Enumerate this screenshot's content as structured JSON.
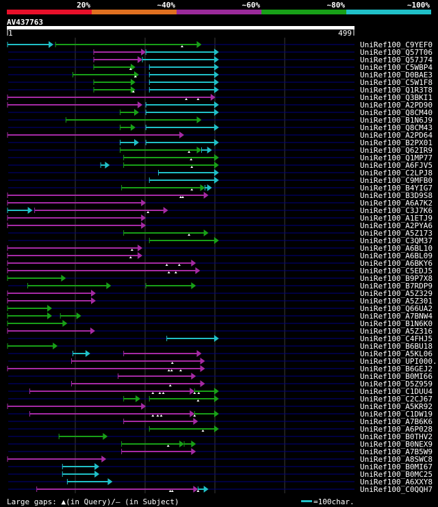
{
  "chart_data": {
    "type": "alignment-overview",
    "query_id": "AV437763",
    "ruler": {
      "start": "1",
      "end": "499"
    },
    "identity_scale": {
      "labels": [
        "20%",
        "~40%",
        "~60%",
        "~80%",
        "~100%"
      ],
      "colors": [
        "#e8102a",
        "#e07020",
        "#9a2a9a",
        "#18a018",
        "#20c0c8"
      ]
    },
    "colors": {
      "cyan": "#20c0c8",
      "green": "#18a018",
      "purple": "#a52aa5",
      "line": "#000080",
      "grid": "#3a3a3a"
    },
    "legend": {
      "gaps_text": "Large gaps: ▲(in Query)/– (in Subject)",
      "scale_text": "=100char."
    },
    "hits": [
      {
        "name": "UniRef100_C9YEF0",
        "segments": [
          {
            "s": 1,
            "e": 67,
            "c": "cyan"
          },
          {
            "s": 70,
            "e": 280,
            "c": "green"
          }
        ],
        "gaps": [
          252
        ]
      },
      {
        "name": "UniRef100_Q57T06",
        "segments": [
          {
            "s": 125,
            "e": 200,
            "c": "purple"
          },
          {
            "s": 200,
            "e": 305,
            "c": "cyan"
          }
        ],
        "gaps": []
      },
      {
        "name": "UniRef100_Q57J74",
        "segments": [
          {
            "s": 125,
            "e": 195,
            "c": "purple"
          },
          {
            "s": 195,
            "e": 305,
            "c": "cyan"
          }
        ],
        "gaps": []
      },
      {
        "name": "UniRef100_C5WBP4",
        "segments": [
          {
            "s": 125,
            "e": 185,
            "c": "green"
          },
          {
            "s": 205,
            "e": 305,
            "c": "cyan"
          }
        ],
        "gaps": [
          178
        ]
      },
      {
        "name": "UniRef100_D0BAE3",
        "segments": [
          {
            "s": 95,
            "e": 190,
            "c": "green"
          },
          {
            "s": 205,
            "e": 305,
            "c": "cyan"
          }
        ],
        "gaps": [
          185
        ]
      },
      {
        "name": "UniRef100_C5W1F8",
        "segments": [
          {
            "s": 125,
            "e": 185,
            "c": "green"
          },
          {
            "s": 205,
            "e": 305,
            "c": "cyan"
          }
        ],
        "gaps": []
      },
      {
        "name": "UniRef100_Q1R3T8",
        "segments": [
          {
            "s": 125,
            "e": 185,
            "c": "green"
          },
          {
            "s": 205,
            "e": 305,
            "c": "cyan"
          }
        ],
        "gaps": [
          182
        ]
      },
      {
        "name": "UniRef100_Q3BKI1",
        "segments": [
          {
            "s": 1,
            "e": 300,
            "c": "purple"
          }
        ],
        "gaps": [
          258,
          275
        ]
      },
      {
        "name": "UniRef100_A2PD90",
        "segments": [
          {
            "s": 1,
            "e": 195,
            "c": "purple"
          },
          {
            "s": 200,
            "e": 305,
            "c": "cyan"
          }
        ],
        "gaps": []
      },
      {
        "name": "UniRef100_Q8CM40",
        "segments": [
          {
            "s": 163,
            "e": 190,
            "c": "green"
          },
          {
            "s": 200,
            "e": 305,
            "c": "cyan"
          }
        ],
        "gaps": []
      },
      {
        "name": "UniRef100_B1N6J9",
        "segments": [
          {
            "s": 85,
            "e": 280,
            "c": "green"
          }
        ],
        "gaps": []
      },
      {
        "name": "UniRef100_Q8CM43",
        "segments": [
          {
            "s": 163,
            "e": 185,
            "c": "green"
          },
          {
            "s": 200,
            "e": 305,
            "c": "cyan"
          }
        ],
        "gaps": []
      },
      {
        "name": "UniRef100_A2PD64",
        "segments": [
          {
            "s": 1,
            "e": 255,
            "c": "purple"
          }
        ],
        "gaps": []
      },
      {
        "name": "UniRef100_B2PX01",
        "segments": [
          {
            "s": 163,
            "e": 190,
            "c": "cyan"
          },
          {
            "s": 200,
            "e": 305,
            "c": "cyan"
          }
        ],
        "gaps": []
      },
      {
        "name": "UniRef100_Q62IR9",
        "segments": [
          {
            "s": 163,
            "e": 280,
            "c": "green"
          },
          {
            "s": 280,
            "e": 295,
            "c": "cyan"
          }
        ],
        "gaps": [
          262
        ]
      },
      {
        "name": "UniRef100_Q1MP77",
        "segments": [
          {
            "s": 168,
            "e": 305,
            "c": "green"
          }
        ],
        "gaps": [
          265
        ]
      },
      {
        "name": "UniRef100_A6FJV5",
        "segments": [
          {
            "s": 135,
            "e": 148,
            "c": "cyan"
          },
          {
            "s": 168,
            "e": 305,
            "c": "green"
          }
        ],
        "gaps": [
          266
        ]
      },
      {
        "name": "UniRef100_C2LPJ8",
        "segments": [
          {
            "s": 218,
            "e": 305,
            "c": "cyan"
          }
        ],
        "gaps": []
      },
      {
        "name": "UniRef100_C9MFB0",
        "segments": [
          {
            "s": 205,
            "e": 305,
            "c": "cyan"
          }
        ],
        "gaps": []
      },
      {
        "name": "UniRef100_B4YIG7",
        "segments": [
          {
            "s": 165,
            "e": 285,
            "c": "green"
          },
          {
            "s": 285,
            "e": 295,
            "c": "cyan"
          }
        ],
        "gaps": [
          266
        ]
      },
      {
        "name": "UniRef100_B3D9S8",
        "segments": [
          {
            "s": 1,
            "e": 290,
            "c": "purple"
          }
        ],
        "gaps": [
          250,
          253
        ]
      },
      {
        "name": "UniRef100_A6A7K2",
        "segments": [
          {
            "s": 1,
            "e": 200,
            "c": "purple"
          }
        ],
        "gaps": []
      },
      {
        "name": "UniRef100_C3J7K6",
        "segments": [
          {
            "s": 1,
            "e": 37,
            "c": "cyan"
          },
          {
            "s": 40,
            "e": 232,
            "c": "purple"
          }
        ],
        "gaps": [
          203
        ]
      },
      {
        "name": "UniRef100_A1ETJ9",
        "segments": [
          {
            "s": 1,
            "e": 200,
            "c": "purple"
          }
        ],
        "gaps": []
      },
      {
        "name": "UniRef100_A2PYA6",
        "segments": [
          {
            "s": 1,
            "e": 200,
            "c": "purple"
          }
        ],
        "gaps": []
      },
      {
        "name": "UniRef100_A5Z173",
        "segments": [
          {
            "s": 168,
            "e": 290,
            "c": "green"
          }
        ],
        "gaps": [
          262
        ]
      },
      {
        "name": "UniRef100_C3QM37",
        "segments": [
          {
            "s": 205,
            "e": 305,
            "c": "green"
          }
        ],
        "gaps": []
      },
      {
        "name": "UniRef100_A6BL10",
        "segments": [
          {
            "s": 1,
            "e": 195,
            "c": "purple"
          }
        ],
        "gaps": [
          180
        ]
      },
      {
        "name": "UniRef100_A6BL09",
        "segments": [
          {
            "s": 1,
            "e": 195,
            "c": "purple"
          }
        ],
        "gaps": [
          178
        ]
      },
      {
        "name": "UniRef100_A6BKY6",
        "segments": [
          {
            "s": 1,
            "e": 272,
            "c": "purple"
          }
        ],
        "gaps": [
          230,
          248
        ]
      },
      {
        "name": "UniRef100_C5EDJ5",
        "segments": [
          {
            "s": 1,
            "e": 278,
            "c": "purple"
          }
        ],
        "gaps": [
          233,
          243
        ]
      },
      {
        "name": "UniRef100_B9P7X8",
        "segments": [
          {
            "s": 1,
            "e": 85,
            "c": "green"
          }
        ],
        "gaps": []
      },
      {
        "name": "UniRef100_B7RDP9",
        "segments": [
          {
            "s": 30,
            "e": 150,
            "c": "green"
          },
          {
            "s": 200,
            "e": 272,
            "c": "green"
          }
        ],
        "gaps": []
      },
      {
        "name": "UniRef100_A5Z329",
        "segments": [
          {
            "s": 1,
            "e": 128,
            "c": "purple"
          }
        ],
        "gaps": []
      },
      {
        "name": "UniRef100_A5Z301",
        "segments": [
          {
            "s": 1,
            "e": 128,
            "c": "purple"
          }
        ],
        "gaps": []
      },
      {
        "name": "UniRef100_Q66UA2",
        "segments": [
          {
            "s": 1,
            "e": 65,
            "c": "green"
          }
        ],
        "gaps": []
      },
      {
        "name": "UniRef100_A7BNW4",
        "segments": [
          {
            "s": 1,
            "e": 65,
            "c": "green"
          },
          {
            "s": 77,
            "e": 107,
            "c": "green"
          }
        ],
        "gaps": []
      },
      {
        "name": "UniRef100_B1N6K0",
        "segments": [
          {
            "s": 1,
            "e": 87,
            "c": "green"
          }
        ],
        "gaps": []
      },
      {
        "name": "UniRef100_A5Z316",
        "segments": [
          {
            "s": 1,
            "e": 127,
            "c": "purple"
          }
        ],
        "gaps": []
      },
      {
        "name": "UniRef100_C4FHJ5",
        "segments": [
          {
            "s": 230,
            "e": 305,
            "c": "cyan"
          }
        ],
        "gaps": []
      },
      {
        "name": "UniRef100_B6BU18",
        "segments": [
          {
            "s": 1,
            "e": 73,
            "c": "green"
          }
        ],
        "gaps": []
      },
      {
        "name": "UniRef100_A5KL06",
        "segments": [
          {
            "s": 95,
            "e": 120,
            "c": "cyan"
          },
          {
            "s": 168,
            "e": 280,
            "c": "purple"
          }
        ],
        "gaps": []
      },
      {
        "name": "UniRef100_UPI000..",
        "segments": [
          {
            "s": 93,
            "e": 285,
            "c": "purple"
          }
        ],
        "gaps": [
          238
        ]
      },
      {
        "name": "UniRef100_B6GEJ2",
        "segments": [
          {
            "s": 1,
            "e": 285,
            "c": "purple"
          }
        ],
        "gaps": [
          233,
          237,
          250
        ]
      },
      {
        "name": "UniRef100_B0MI66",
        "segments": [
          {
            "s": 160,
            "e": 272,
            "c": "purple"
          }
        ],
        "gaps": []
      },
      {
        "name": "UniRef100_D5Z959",
        "segments": [
          {
            "s": 93,
            "e": 285,
            "c": "purple"
          }
        ],
        "gaps": [
          235
        ]
      },
      {
        "name": "UniRef100_C1DUU4",
        "segments": [
          {
            "s": 33,
            "e": 270,
            "c": "purple"
          },
          {
            "s": 270,
            "e": 305,
            "c": "green"
          }
        ],
        "gaps": [
          210,
          220,
          225,
          270,
          276
        ]
      },
      {
        "name": "UniRef100_C2CJ67",
        "segments": [
          {
            "s": 168,
            "e": 192,
            "c": "green"
          },
          {
            "s": 205,
            "e": 305,
            "c": "green"
          }
        ],
        "gaps": [
          275
        ]
      },
      {
        "name": "UniRef100_A5KR92",
        "segments": [
          {
            "s": 1,
            "e": 200,
            "c": "purple"
          }
        ],
        "gaps": []
      },
      {
        "name": "UniRef100_C1DW19",
        "segments": [
          {
            "s": 33,
            "e": 270,
            "c": "purple"
          },
          {
            "s": 270,
            "e": 305,
            "c": "green"
          }
        ],
        "gaps": [
          210,
          217,
          222,
          270
        ]
      },
      {
        "name": "UniRef100_A7B6K6",
        "segments": [
          {
            "s": 168,
            "e": 275,
            "c": "purple"
          }
        ],
        "gaps": []
      },
      {
        "name": "UniRef100_A6P028",
        "segments": [
          {
            "s": 205,
            "e": 305,
            "c": "green"
          }
        ],
        "gaps": [
          282
        ]
      },
      {
        "name": "UniRef100_B0THV2",
        "segments": [
          {
            "s": 75,
            "e": 145,
            "c": "green"
          }
        ],
        "gaps": []
      },
      {
        "name": "UniRef100_B0NEX9",
        "segments": [
          {
            "s": 165,
            "e": 255,
            "c": "green"
          },
          {
            "s": 255,
            "e": 272,
            "c": "green"
          }
        ],
        "gaps": [
          232
        ]
      },
      {
        "name": "UniRef100_A7B5W9",
        "segments": [
          {
            "s": 165,
            "e": 272,
            "c": "purple"
          }
        ],
        "gaps": []
      },
      {
        "name": "UniRef100_A8SWC8",
        "segments": [
          {
            "s": 1,
            "e": 143,
            "c": "purple"
          }
        ],
        "gaps": []
      },
      {
        "name": "UniRef100_B0MI67",
        "segments": [
          {
            "s": 80,
            "e": 133,
            "c": "cyan"
          }
        ],
        "gaps": []
      },
      {
        "name": "UniRef100_B0MC25",
        "segments": [
          {
            "s": 80,
            "e": 133,
            "c": "cyan"
          }
        ],
        "gaps": []
      },
      {
        "name": "UniRef100_A6XXY8",
        "segments": [
          {
            "s": 87,
            "e": 152,
            "c": "cyan"
          }
        ],
        "gaps": []
      },
      {
        "name": "UniRef100_C0QQH7",
        "segments": [
          {
            "s": 43,
            "e": 275,
            "c": "purple"
          },
          {
            "s": 275,
            "e": 290,
            "c": "cyan"
          }
        ],
        "gaps": [
          235,
          238,
          275
        ]
      }
    ]
  }
}
